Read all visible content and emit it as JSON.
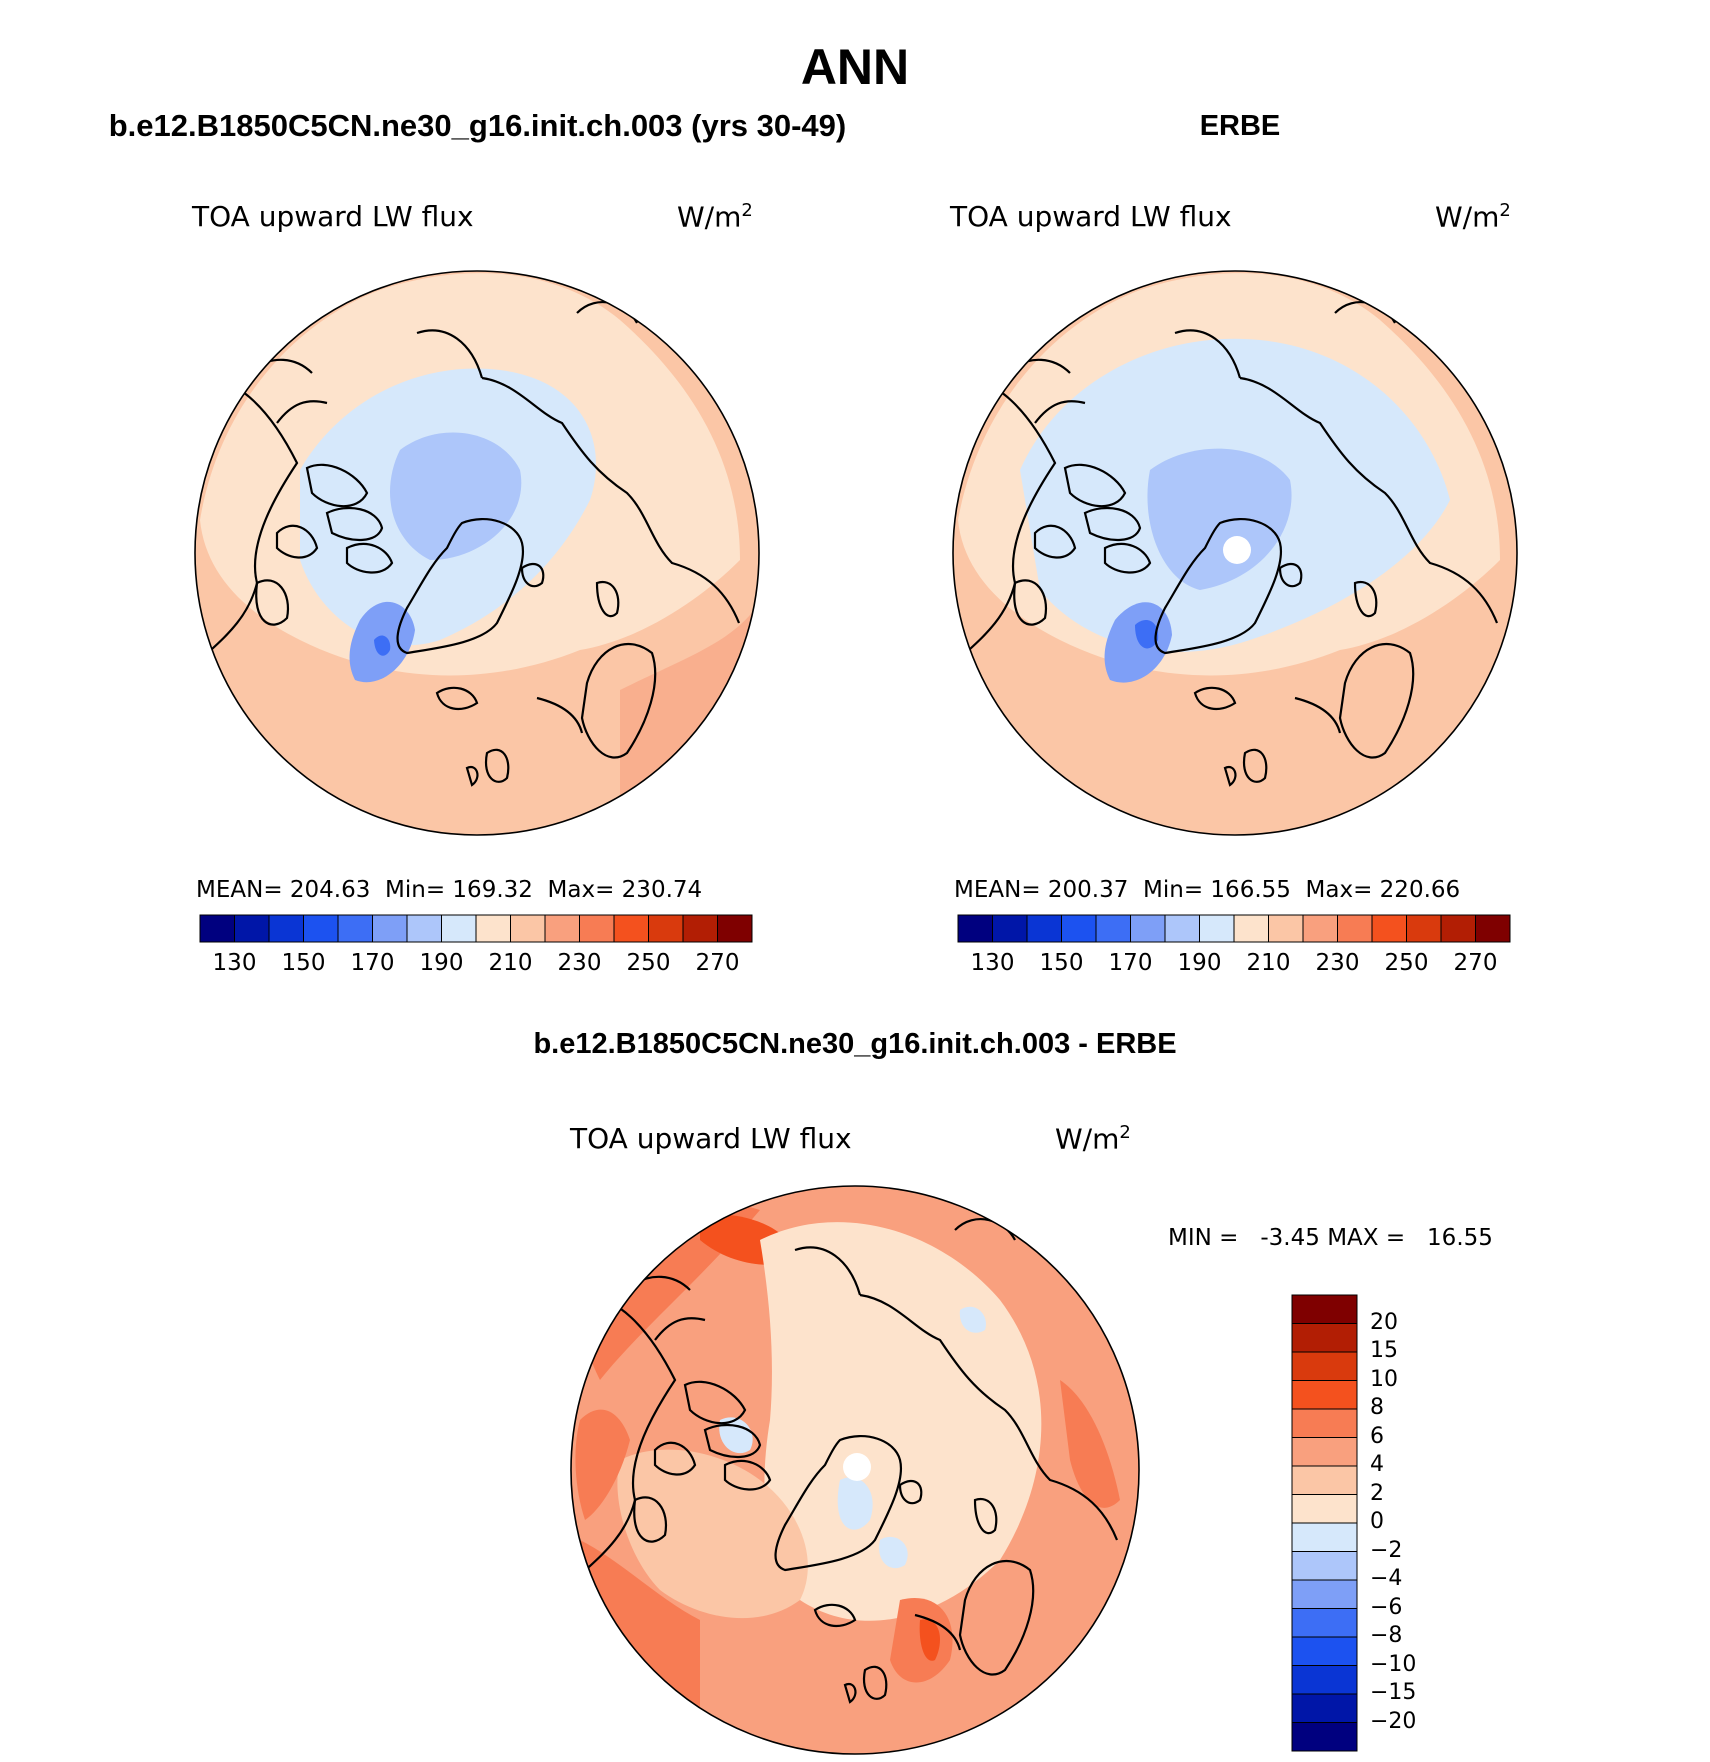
{
  "main_title": "ANN",
  "panels": [
    {
      "title": "b.e12.B1850C5CN.ne30_g16.init.ch.003 (yrs 30-49)",
      "variable": "TOA upward LW flux",
      "units_base": "W/m",
      "units_exp": "2",
      "stats": {
        "mean_label": "MEAN=",
        "mean": "204.63",
        "min_label": "Min=",
        "min": "169.32",
        "max_label": "Max=",
        "max": "230.74"
      }
    },
    {
      "title": "ERBE",
      "variable": "TOA upward LW flux",
      "units_base": "W/m",
      "units_exp": "2",
      "stats": {
        "mean_label": "MEAN=",
        "mean": "200.37",
        "min_label": "Min=",
        "min": "166.55",
        "max_label": "Max=",
        "max": "220.66"
      }
    },
    {
      "title": "b.e12.B1850C5CN.ne30_g16.init.ch.003 - ERBE",
      "variable": "TOA upward LW flux",
      "units_base": "W/m",
      "units_exp": "2",
      "stats": {
        "min_label": "MIN =",
        "min": "-3.45",
        "max_label": "MAX =",
        "max": "16.55"
      }
    }
  ],
  "abs_colorbar": {
    "labels": [
      "130",
      "150",
      "170",
      "190",
      "210",
      "230",
      "250",
      "270"
    ],
    "colors": [
      "#00007f",
      "#0016a8",
      "#0a35d4",
      "#1c52f0",
      "#3d6ef5",
      "#7e9ff7",
      "#adc6fa",
      "#d6e8fb",
      "#fde3cc",
      "#fbc6a6",
      "#f9a07e",
      "#f77c54",
      "#f4511e",
      "#d93a0d",
      "#b21e04",
      "#7f0000"
    ]
  },
  "diff_colorbar": {
    "labels": [
      "20",
      "15",
      "10",
      "8",
      "6",
      "4",
      "2",
      "0",
      "−2",
      "−4",
      "−6",
      "−8",
      "−10",
      "−15",
      "−20"
    ],
    "colors": [
      "#7f0000",
      "#b21e04",
      "#d93a0d",
      "#f4511e",
      "#f77c54",
      "#f9a07e",
      "#fbc6a6",
      "#fde3cc",
      "#d6e8fb",
      "#adc6fa",
      "#7e9ff7",
      "#3d6ef5",
      "#1c52f0",
      "#0a35d4",
      "#0016a8",
      "#00007f"
    ]
  }
}
